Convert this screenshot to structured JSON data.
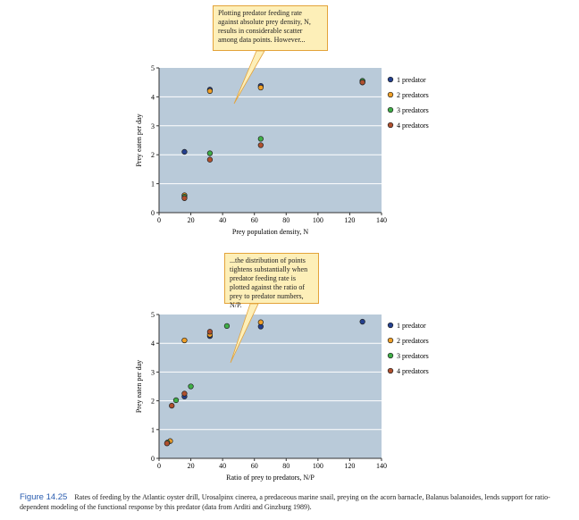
{
  "chart_data": [
    {
      "type": "scatter",
      "xlabel": "Prey population density, N",
      "ylabel": "Prey eaten per day",
      "xlim": [
        0,
        140
      ],
      "ylim": [
        0,
        5
      ],
      "xticks": [
        0,
        20,
        40,
        60,
        80,
        100,
        120,
        140
      ],
      "yticks": [
        0,
        1,
        2,
        3,
        4,
        5
      ],
      "grid": "horizontal",
      "legend": "right",
      "callout": "Plotting predator feeding rate against absolute prey density, N, results in considerable scatter among data points. However...",
      "series": [
        {
          "name": "1 predator",
          "color": "#24408f",
          "points": [
            [
              16,
              2.1
            ],
            [
              32,
              4.25
            ],
            [
              64,
              4.38
            ],
            [
              128,
              4.55
            ]
          ]
        },
        {
          "name": "2 predators",
          "color": "#f0a028",
          "points": [
            [
              16,
              0.6
            ],
            [
              32,
              4.2
            ],
            [
              64,
              4.32
            ],
            [
              128,
              4.5
            ]
          ]
        },
        {
          "name": "3 predators",
          "color": "#3fae47",
          "points": [
            [
              16,
              0.55
            ],
            [
              32,
              2.05
            ],
            [
              64,
              2.55
            ],
            [
              128,
              4.55
            ]
          ]
        },
        {
          "name": "4 predators",
          "color": "#b0502e",
          "points": [
            [
              16,
              0.5
            ],
            [
              32,
              1.83
            ],
            [
              64,
              2.33
            ],
            [
              128,
              4.5
            ]
          ]
        }
      ]
    },
    {
      "type": "scatter",
      "xlabel": "Ratio of prey to predators, N/P",
      "ylabel": "Prey eaten per day",
      "xlim": [
        0,
        140
      ],
      "ylim": [
        0,
        5
      ],
      "xticks": [
        0,
        20,
        40,
        60,
        80,
        100,
        120,
        140
      ],
      "yticks": [
        0,
        1,
        2,
        3,
        4,
        5
      ],
      "grid": "horizontal",
      "legend": "right",
      "callout": "...the distribution of points tightens substantially when predator feeding rate is plotted against the ratio of prey to predator numbers, N/P.",
      "series": [
        {
          "name": "1 predator",
          "color": "#24408f",
          "points": [
            [
              16,
              2.15
            ],
            [
              32,
              4.25
            ],
            [
              64,
              4.58
            ],
            [
              128,
              4.75
            ]
          ]
        },
        {
          "name": "2 predators",
          "color": "#f0a028",
          "points": [
            [
              7,
              0.6
            ],
            [
              16,
              4.1
            ],
            [
              32,
              4.3
            ],
            [
              64,
              4.73
            ]
          ]
        },
        {
          "name": "3 predators",
          "color": "#3fae47",
          "points": [
            [
              5.3,
              0.55
            ],
            [
              10.7,
              2.02
            ],
            [
              20,
              2.5
            ],
            [
              42.7,
              4.6
            ]
          ]
        },
        {
          "name": "4 predators",
          "color": "#b0502e",
          "points": [
            [
              5,
              0.52
            ],
            [
              8,
              1.83
            ],
            [
              16,
              2.25
            ],
            [
              32,
              4.4
            ]
          ]
        }
      ]
    }
  ],
  "callouts": [
    {
      "text": "Plotting predator feeding rate against absolute prey density, N, results in considerable scatter among data points. However..."
    },
    {
      "text": "...the distribution of points tightens substantially when predator feeding rate is plotted against the ratio of prey to predator numbers, N/P."
    }
  ],
  "caption": {
    "label": "Figure 14.25",
    "text": "Rates of feeding by the Atlantic oyster drill, Urosalpinx cinerea, a predaceous marine snail, preying on the acorn barnacle, Balanus balanoides, lends support for ratio-dependent modeling of the functional response by this predator (data from Arditi and Ginzburg 1989)."
  },
  "colors": {
    "plot_bg": "#b9cad9",
    "callout_bg": "#fdefb8",
    "callout_border": "#e3a33a",
    "figure_label": "#2a5db0"
  }
}
